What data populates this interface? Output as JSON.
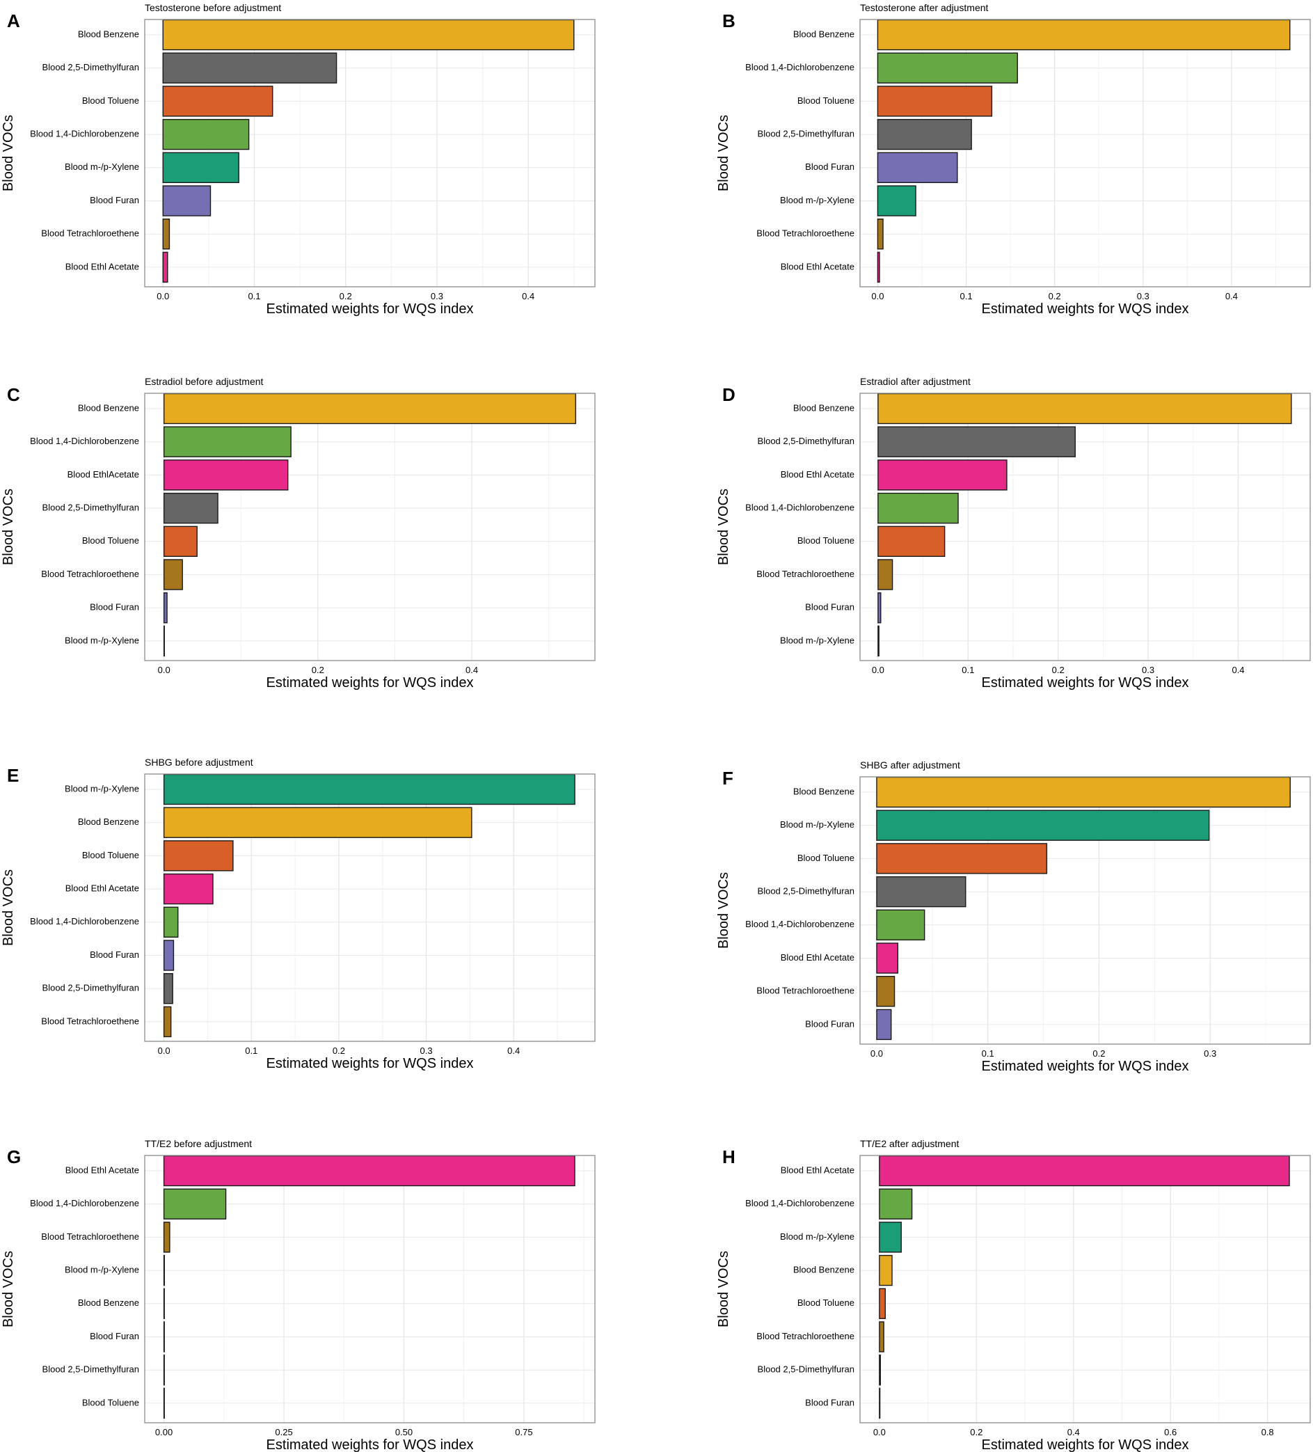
{
  "figure": {
    "ylabel": "Blood VOCs",
    "xlabel": "Estimated weights for WQS index"
  },
  "colors": {
    "Blood Benzene": "#E6AB1F",
    "Blood 2,5-Dimethylfuran": "#666666",
    "Blood Toluene": "#D95F28",
    "Blood 1,4-Dichlorobenzene": "#66A843",
    "Blood m-/p-Xylene": "#1B9E77",
    "Blood Furan": "#7570B3",
    "Blood Tetrachloroethene": "#A6761D",
    "Blood Ethl Acetate": "#E7298A",
    "Blood EthlAcetate": "#E7298A"
  },
  "chart_data": [
    {
      "panel": "A",
      "type": "bar",
      "orientation": "horizontal",
      "title": "Testosterone before adjustment",
      "xlabel": "Estimated weights for WQS index",
      "ylabel": "Blood VOCs",
      "xlim": [
        -0.02,
        0.473
      ],
      "xticks": [
        0.0,
        0.1,
        0.2,
        0.3,
        0.4
      ],
      "xtick_labels": [
        "0.0",
        "0.1",
        "0.2",
        "0.3",
        "0.4"
      ],
      "categories": [
        "Blood Benzene",
        "Blood 2,5-Dimethylfuran",
        "Blood Toluene",
        "Blood 1,4-Dichlorobenzene",
        "Blood m-/p-Xylene",
        "Blood Furan",
        "Blood Tetrachloroethene",
        "Blood Ethl Acetate"
      ],
      "values": [
        0.45,
        0.19,
        0.12,
        0.094,
        0.083,
        0.052,
        0.007,
        0.005
      ]
    },
    {
      "panel": "B",
      "type": "bar",
      "orientation": "horizontal",
      "title": "Testosterone after adjustment",
      "xlabel": "Estimated weights for WQS index",
      "ylabel": "Blood VOCs",
      "xlim": [
        -0.02,
        0.489
      ],
      "xticks": [
        0.0,
        0.1,
        0.2,
        0.3,
        0.4
      ],
      "xtick_labels": [
        "0.0",
        "0.1",
        "0.2",
        "0.3",
        "0.4"
      ],
      "categories": [
        "Blood Benzene",
        "Blood 1,4-Dichlorobenzene",
        "Blood Toluene",
        "Blood 2,5-Dimethylfuran",
        "Blood Furan",
        "Blood m-/p-Xylene",
        "Blood Tetrachloroethene",
        "Blood Ethl Acetate"
      ],
      "values": [
        0.466,
        0.158,
        0.129,
        0.106,
        0.09,
        0.043,
        0.006,
        0.002
      ]
    },
    {
      "panel": "C",
      "type": "bar",
      "orientation": "horizontal",
      "title": "Estradiol before adjustment",
      "xlabel": "Estimated weights for WQS index",
      "ylabel": "Blood VOCs",
      "xlim": [
        -0.025,
        0.56
      ],
      "xticks": [
        0.0,
        0.2,
        0.4
      ],
      "xtick_labels": [
        "0.0",
        "0.2",
        "0.4"
      ],
      "categories": [
        "Blood Benzene",
        "Blood 1,4-Dichlorobenzene",
        "Blood EthlAcetate",
        "Blood 2,5-Dimethylfuran",
        "Blood Toluene",
        "Blood Tetrachloroethene",
        "Blood Furan",
        "Blood m-/p-Xylene"
      ],
      "values": [
        0.535,
        0.165,
        0.161,
        0.07,
        0.043,
        0.024,
        0.004,
        0.0
      ]
    },
    {
      "panel": "D",
      "type": "bar",
      "orientation": "horizontal",
      "title": "Estradiol after adjustment",
      "xlabel": "Estimated weights for WQS index",
      "ylabel": "Blood VOCs",
      "xlim": [
        -0.02,
        0.48
      ],
      "xticks": [
        0.0,
        0.1,
        0.2,
        0.3,
        0.4
      ],
      "xtick_labels": [
        "0.0",
        "0.1",
        "0.2",
        "0.3",
        "0.4"
      ],
      "categories": [
        "Blood Benzene",
        "Blood 2,5-Dimethylfuran",
        "Blood Ethl Acetate",
        "Blood 1,4-Dichlorobenzene",
        "Blood Toluene",
        "Blood Tetrachloroethene",
        "Blood Furan",
        "Blood m-/p-Xylene"
      ],
      "values": [
        0.459,
        0.219,
        0.143,
        0.089,
        0.074,
        0.016,
        0.003,
        0.001
      ]
    },
    {
      "panel": "E",
      "type": "bar",
      "orientation": "horizontal",
      "title": "SHBG before adjustment",
      "xlabel": "Estimated weights for WQS index",
      "ylabel": "Blood VOCs",
      "xlim": [
        -0.022,
        0.493
      ],
      "xticks": [
        0.0,
        0.1,
        0.2,
        0.3,
        0.4
      ],
      "xtick_labels": [
        "0.0",
        "0.1",
        "0.2",
        "0.3",
        "0.4"
      ],
      "categories": [
        "Blood m-/p-Xylene",
        "Blood Benzene",
        "Blood Toluene",
        "Blood Ethl Acetate",
        "Blood 1,4-Dichlorobenzene",
        "Blood Furan",
        "Blood 2,5-Dimethylfuran",
        "Blood Tetrachloroethene"
      ],
      "values": [
        0.47,
        0.352,
        0.079,
        0.056,
        0.016,
        0.011,
        0.01,
        0.008
      ]
    },
    {
      "panel": "F",
      "type": "bar",
      "orientation": "horizontal",
      "title": "SHBG after adjustment",
      "xlabel": "Estimated weights for WQS index",
      "ylabel": "Blood VOCs",
      "xlim": [
        -0.015,
        0.39
      ],
      "xticks": [
        0.0,
        0.1,
        0.2,
        0.3
      ],
      "xtick_labels": [
        "0.0",
        "0.1",
        "0.2",
        "0.3"
      ],
      "categories": [
        "Blood Benzene",
        "Blood m-/p-Xylene",
        "Blood Toluene",
        "Blood 2,5-Dimethylfuran",
        "Blood 1,4-Dichlorobenzene",
        "Blood Ethl Acetate",
        "Blood Tetrachloroethene",
        "Blood Furan"
      ],
      "values": [
        0.372,
        0.299,
        0.153,
        0.08,
        0.043,
        0.019,
        0.016,
        0.013
      ]
    },
    {
      "panel": "G",
      "type": "bar",
      "orientation": "horizontal",
      "title": "TT/E2 before adjustment",
      "xlabel": "Estimated weights for WQS index",
      "ylabel": "Blood VOCs",
      "xlim": [
        -0.04,
        0.898
      ],
      "xticks": [
        0.0,
        0.25,
        0.5,
        0.75
      ],
      "xtick_labels": [
        "0.00",
        "0.25",
        "0.50",
        "0.75"
      ],
      "categories": [
        "Blood Ethl Acetate",
        "Blood 1,4-Dichlorobenzene",
        "Blood Tetrachloroethene",
        "Blood m-/p-Xylene",
        "Blood Benzene",
        "Blood Furan",
        "Blood 2,5-Dimethylfuran",
        "Blood Toluene"
      ],
      "values": [
        0.856,
        0.129,
        0.012,
        0.001,
        0.0,
        0.0,
        0.0,
        0.0
      ]
    },
    {
      "panel": "H",
      "type": "bar",
      "orientation": "horizontal",
      "title": "TT/E2 after adjustment",
      "xlabel": "Estimated weights for WQS index",
      "ylabel": "Blood VOCs",
      "xlim": [
        -0.04,
        0.888
      ],
      "xticks": [
        0.0,
        0.2,
        0.4,
        0.6,
        0.8
      ],
      "xtick_labels": [
        "0.0",
        "0.2",
        "0.4",
        "0.6",
        "0.8"
      ],
      "categories": [
        "Blood Ethl Acetate",
        "Blood 1,4-Dichlorobenzene",
        "Blood m-/p-Xylene",
        "Blood Benzene",
        "Blood Toluene",
        "Blood Tetrachloroethene",
        "Blood 2,5-Dimethylfuran",
        "Blood Furan"
      ],
      "values": [
        0.845,
        0.067,
        0.045,
        0.026,
        0.012,
        0.009,
        0.002,
        0.001
      ]
    }
  ]
}
